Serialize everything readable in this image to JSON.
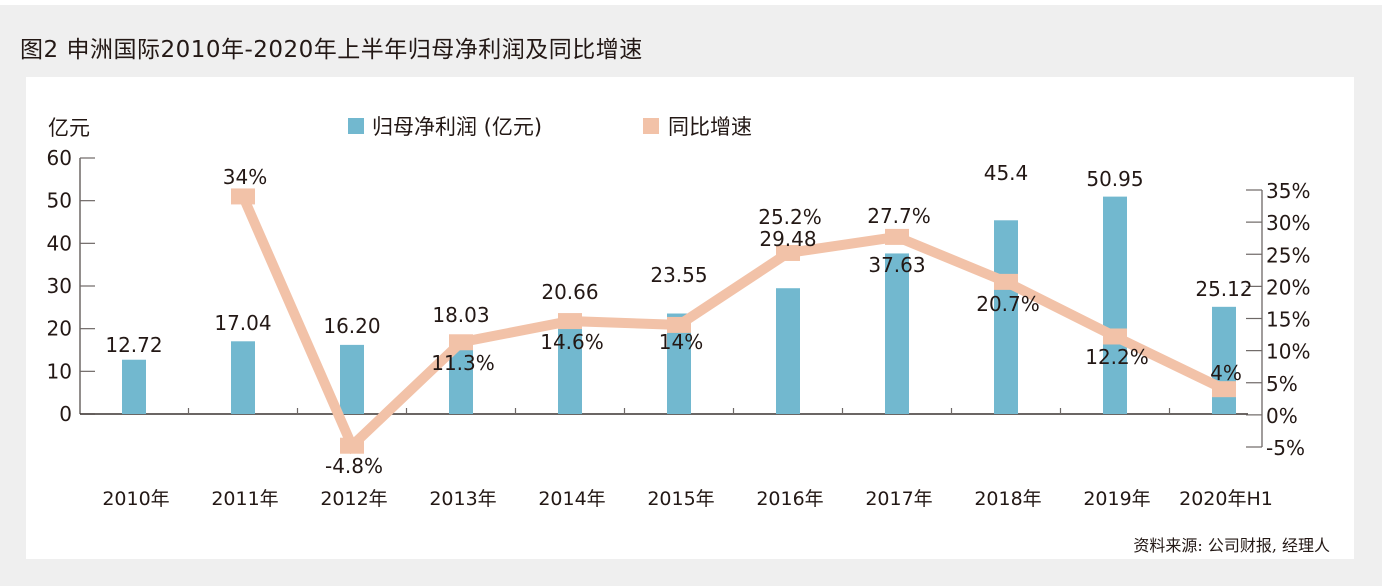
{
  "figure_title": "图2  申洲国际2010年-2020年上半年归母净利润及同比增速",
  "source_note": "资料来源: 公司财报, 经理人",
  "colors": {
    "bar": "#72b8cf",
    "line": "#f2c2a8",
    "axis": "#6e6866",
    "text": "#231815",
    "background": "#efefef",
    "panel": "#ffffff"
  },
  "chart_data": {
    "type": "bar",
    "title": "图2  申洲国际2010年-2020年上半年归母净利润及同比增速",
    "categories": [
      "2010年",
      "2011年",
      "2012年",
      "2013年",
      "2014年",
      "2015年",
      "2016年",
      "2017年",
      "2018年",
      "2019年",
      "2020年H1"
    ],
    "series": [
      {
        "name": "归母净利润 (亿元)",
        "type": "bar",
        "axis": "left",
        "values": [
          12.72,
          17.04,
          16.2,
          18.03,
          20.66,
          23.55,
          29.48,
          37.63,
          45.4,
          50.95,
          25.12
        ],
        "labels": [
          "12.72",
          "17.04",
          "16.20",
          "18.03",
          "20.66",
          "23.55",
          "29.48",
          "37.63",
          "45.4",
          "50.95",
          "25.12"
        ]
      },
      {
        "name": "同比增速",
        "type": "line",
        "axis": "right",
        "values": [
          null,
          34,
          -4.8,
          11.3,
          14.6,
          14,
          25.2,
          27.7,
          20.7,
          12.2,
          4
        ],
        "labels": [
          "",
          "34%",
          "-4.8%",
          "11.3%",
          "14.6%",
          "14%",
          "25.2%",
          "27.7%",
          "20.7%",
          "12.2%",
          "4%"
        ]
      }
    ],
    "left_axis": {
      "label": "亿元",
      "ylim": [
        0,
        60
      ],
      "ticks": [
        0,
        10,
        20,
        30,
        40,
        50,
        60
      ],
      "tick_labels": [
        "0",
        "10",
        "20",
        "30",
        "40",
        "50",
        "60"
      ]
    },
    "right_axis": {
      "ylim": [
        -5,
        35
      ],
      "ticks": [
        -5,
        0,
        5,
        10,
        15,
        20,
        25,
        30,
        35
      ],
      "tick_labels": [
        "-5%",
        "0%",
        "5%",
        "10%",
        "15%",
        "20%",
        "25%",
        "30%",
        "35%"
      ]
    },
    "xlabel": "",
    "ylabel": "亿元",
    "grid": false,
    "legend": {
      "position": "top-center",
      "entries": [
        "归母净利润 (亿元)",
        "同比增速"
      ]
    }
  }
}
